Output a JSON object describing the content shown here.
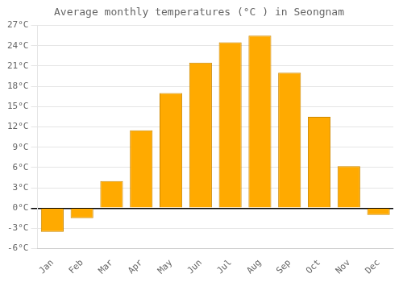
{
  "chart_data": {
    "type": "bar",
    "title": "Average monthly temperatures (°C ) in Seongnam",
    "categories": [
      "Jan",
      "Feb",
      "Mar",
      "Apr",
      "May",
      "Jun",
      "Jul",
      "Aug",
      "Sep",
      "Oct",
      "Nov",
      "Dec"
    ],
    "values": [
      -3.5,
      -1.5,
      4.0,
      11.5,
      17.0,
      21.5,
      24.5,
      25.5,
      20.0,
      13.5,
      6.2,
      -1.0
    ],
    "color": "#FFAA00",
    "ylim": [
      -6,
      27
    ],
    "yticks": [
      {
        "value": -6,
        "label": "-6°C"
      },
      {
        "value": -3,
        "label": "-3°C"
      },
      {
        "value": 0,
        "label": "0°C"
      },
      {
        "value": 3,
        "label": "3°C"
      },
      {
        "value": 6,
        "label": "6°C"
      },
      {
        "value": 9,
        "label": "9°C"
      },
      {
        "value": 12,
        "label": "12°C"
      },
      {
        "value": 15,
        "label": "15°C"
      },
      {
        "value": 18,
        "label": "18°C"
      },
      {
        "value": 21,
        "label": "21°C"
      },
      {
        "value": 24,
        "label": "24°C"
      },
      {
        "value": 27,
        "label": "27°C"
      }
    ],
    "grid": true
  }
}
